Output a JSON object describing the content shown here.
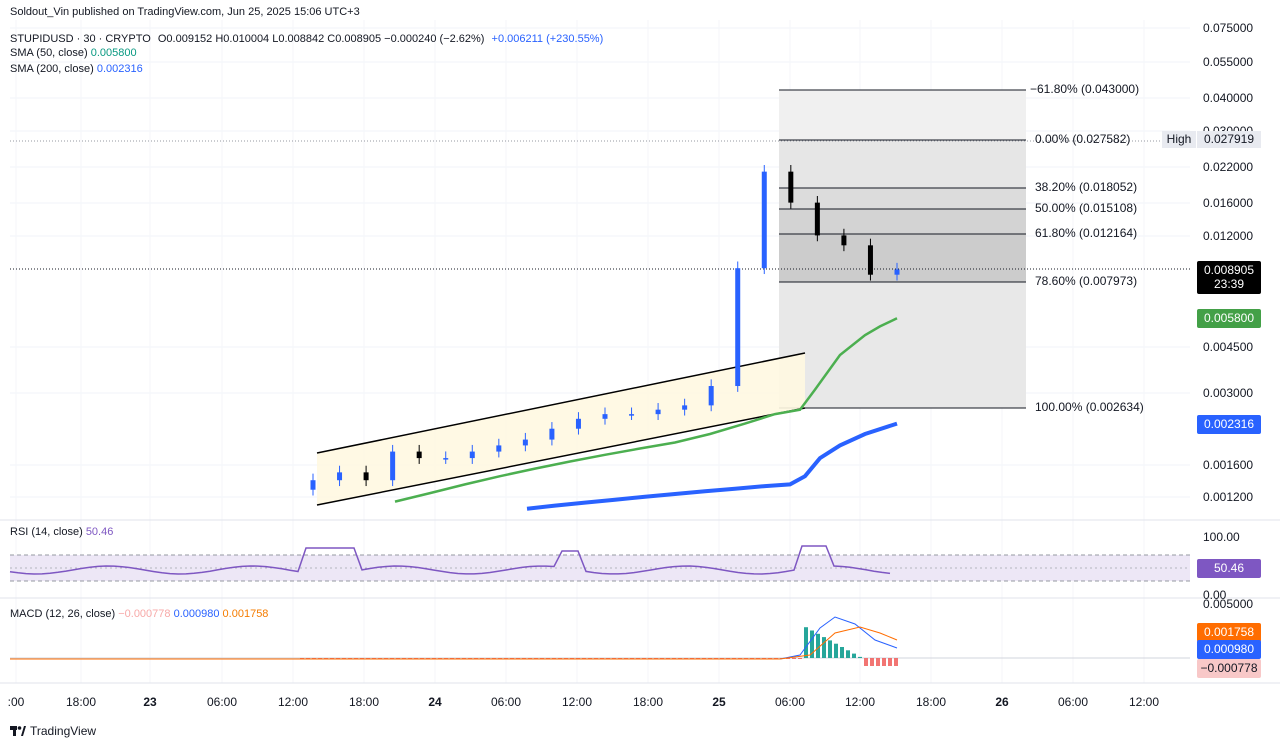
{
  "header": {
    "publisher": "Soldout_Vin published on TradingView.com, Jun 25, 2025 15:06 UTC+3",
    "symbol": "STUPIDUSD · 30 · CRYPTO",
    "ohlc": "O0.009152 H0.010004 L0.008842 C0.008905 −0.000240 (−2.62%)",
    "extra_change": "+0.006211 (+230.55%)",
    "sma50_label": "SMA (50, close)",
    "sma50_value": "0.005800",
    "sma200_label": "SMA (200, close)",
    "sma200_value": "0.002316"
  },
  "price_axis": [
    "0.075000",
    "0.055000",
    "0.040000",
    "0.030000",
    "0.022000",
    "0.016000",
    "0.012000",
    "0.004500",
    "0.003000",
    "0.001600",
    "0.001200"
  ],
  "tags": {
    "high_label": "High",
    "high_value": "0.027919",
    "last_price": "0.008905",
    "countdown": "23:39",
    "sma50": "0.005800",
    "sma200": "0.002316",
    "rsi": "50.46",
    "macd_signal": "0.001758",
    "macd_line": "0.000980",
    "macd_hist": "−0.000778"
  },
  "fib_levels": [
    {
      "label": "−61.80% (0.043000)",
      "price": 0.043
    },
    {
      "label": "0.00% (0.027582)",
      "price": 0.027582
    },
    {
      "label": "38.20% (0.018052)",
      "price": 0.018052
    },
    {
      "label": "50.00% (0.015108)",
      "price": 0.015108
    },
    {
      "label": "61.80% (0.012164)",
      "price": 0.012164
    },
    {
      "label": "78.60% (0.007973)",
      "price": 0.007973
    },
    {
      "label": "100.00% (0.002634)",
      "price": 0.002634
    }
  ],
  "rsi_panel": {
    "label": "RSI (14, close)",
    "value": "50.46",
    "axis": [
      "100.00",
      "0.00"
    ]
  },
  "macd_panel": {
    "label": "MACD (12, 26, close)",
    "hist": "−0.000778",
    "macd": "0.000980",
    "signal": "0.001758",
    "axis_top": "0.005000"
  },
  "x_axis": [
    ":00",
    "18:00",
    "23",
    "06:00",
    "12:00",
    "18:00",
    "24",
    "06:00",
    "12:00",
    "18:00",
    "25",
    "06:00",
    "12:00",
    "18:00",
    "26",
    "06:00",
    "12:00"
  ],
  "branding": "TradingView",
  "colors": {
    "up": "#2962ff",
    "down": "#000000",
    "sma50": "#4caf50",
    "sma200": "#2962ff",
    "rsi": "#7e57c2",
    "macd": "#2962ff",
    "signal": "#ff6d00"
  },
  "chart_data": {
    "type": "line",
    "title": "STUPIDUSD · 30 · CRYPTO",
    "xlabel": "",
    "ylabel": "",
    "y_scale": "log",
    "series": [
      {
        "name": "SMA (50, close)",
        "values": [
          0.00116,
          0.00125,
          0.00135,
          0.00145,
          0.00155,
          0.00165,
          0.00175,
          0.00185,
          0.00195,
          0.0021,
          0.0023,
          0.0025,
          0.0026,
          0.0031,
          0.0042,
          0.005,
          0.0054,
          0.0058
        ]
      },
      {
        "name": "SMA (200, close)",
        "values": [
          0.00109,
          0.00112,
          0.00115,
          0.00118,
          0.00121,
          0.00124,
          0.00127,
          0.0013,
          0.00133,
          0.00135,
          0.00145,
          0.0017,
          0.0019,
          0.0021,
          0.0023
        ]
      }
    ],
    "price_close": [
      0.0014,
      0.0015,
      0.0014,
      0.0018,
      0.0017,
      0.0017,
      0.0018,
      0.0019,
      0.002,
      0.0022,
      0.0024,
      0.0025,
      0.0025,
      0.0026,
      0.0027,
      0.0032,
      0.009,
      0.021,
      0.016,
      0.012,
      0.011,
      0.0085,
      0.0089
    ]
  }
}
